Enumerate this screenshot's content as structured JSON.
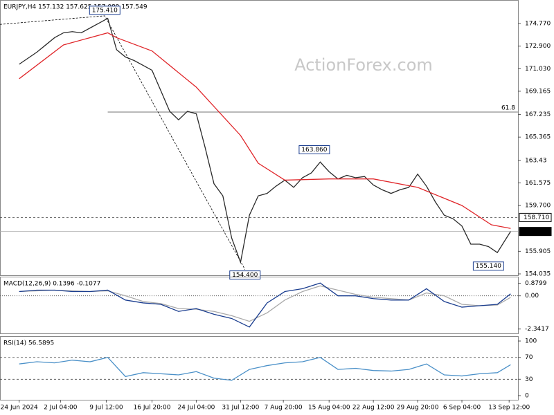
{
  "chart_data": [
    {
      "type": "line",
      "title": "EURJPY,H4  157.132 157.625 157.089 157.549",
      "watermark": "ActionForex.com",
      "xlim": [
        -13,
        338
      ],
      "ylim": [
        153.92,
        176.72
      ],
      "yticks": [
        {
          "value": 174.77,
          "label": "174.770"
        },
        {
          "value": 172.9,
          "label": "172.900"
        },
        {
          "value": 171.03,
          "label": "171.030"
        },
        169.165,
        167.235,
        165.365,
        163.43,
        161.575,
        {
          "value": 159.7,
          "label": "159.700"
        },
        155.905,
        154.035
      ],
      "x": [
        0,
        6,
        12,
        18,
        24,
        30,
        36,
        42,
        48,
        54,
        60,
        66,
        72,
        78,
        84,
        90,
        96,
        102,
        108,
        114,
        120,
        126,
        132,
        138,
        144,
        150,
        156,
        162,
        168,
        174,
        180,
        186,
        192,
        198,
        204,
        210,
        216,
        222,
        228,
        234,
        240,
        246,
        252,
        258,
        264,
        270,
        276,
        282,
        288,
        294,
        300,
        306,
        312,
        318,
        324,
        333
      ],
      "series": [
        {
          "color": "#2b2b2b",
          "values": [
            171.4,
            171.9,
            172.4,
            173.0,
            173.6,
            174.0,
            174.1,
            174.0,
            174.4,
            174.8,
            175.2,
            172.6,
            172.0,
            171.7,
            171.3,
            170.9,
            169.2,
            167.5,
            166.8,
            167.5,
            167.3,
            164.5,
            161.5,
            160.5,
            157.0,
            155.0,
            158.9,
            160.5,
            160.7,
            161.3,
            161.8,
            161.2,
            162.0,
            162.4,
            163.3,
            162.5,
            161.9,
            162.2,
            162.0,
            162.1,
            161.4,
            161.0,
            160.7,
            161.0,
            161.2,
            162.3,
            161.3,
            160.0,
            158.9,
            158.6,
            158.0,
            156.5,
            156.5,
            156.3,
            155.8,
            157.549
          ]
        },
        {
          "color": "#e0262a",
          "x": [
            0,
            30,
            60,
            66,
            90,
            120,
            150,
            162,
            180,
            210,
            240,
            270,
            300,
            320,
            333
          ],
          "values": [
            170.2,
            173.0,
            174.0,
            173.6,
            172.5,
            169.5,
            165.5,
            163.2,
            161.8,
            161.9,
            161.9,
            161.2,
            159.7,
            158.1,
            157.8
          ]
        }
      ],
      "zigzag": {
        "x": [
          -13,
          58,
          153
        ],
        "values": [
          174.7,
          175.41,
          154.4
        ]
      },
      "annotations": [
        {
          "label": "175.410",
          "x": 58,
          "value": 175.41,
          "position": "above"
        },
        {
          "label": "154.400",
          "x": 153,
          "value": 154.4,
          "position": "below"
        },
        {
          "label": "163.860",
          "x": 200,
          "value": 163.86,
          "position": "above"
        },
        {
          "label": "155.140",
          "x": 318,
          "value": 155.14,
          "position": "below"
        }
      ],
      "levels": [
        {
          "value": 167.44,
          "label": "61.8",
          "style": "solid",
          "label_at": "line",
          "x0": 60
        },
        {
          "value": 158.71,
          "label": "158.710",
          "style": "dashed",
          "label_at": "axis"
        },
        {
          "value": 157.549,
          "label": "157.549",
          "style": "solid",
          "label_at": "axis"
        }
      ]
    },
    {
      "type": "line",
      "title": "MACD(12,26,9) 0.1396 -0.1077",
      "xlim": [
        -13,
        338
      ],
      "ylim": [
        -2.65,
        1.35
      ],
      "yticks": [
        0.8799,
        {
          "value": 0,
          "label": "0.00"
        },
        -2.3417
      ],
      "x": [
        0,
        12,
        24,
        36,
        48,
        60,
        72,
        84,
        96,
        108,
        120,
        132,
        144,
        156,
        168,
        180,
        192,
        204,
        216,
        228,
        240,
        252,
        264,
        276,
        288,
        300,
        312,
        324,
        333
      ],
      "series": [
        {
          "color": "#aaaaaa",
          "values": [
            0.3,
            0.35,
            0.4,
            0.35,
            0.3,
            0.35,
            0.0,
            -0.4,
            -0.55,
            -0.9,
            -0.95,
            -1.1,
            -1.4,
            -1.8,
            -1.2,
            -0.3,
            0.3,
            0.7,
            0.4,
            0.1,
            -0.1,
            -0.2,
            -0.3,
            0.2,
            0.0,
            -0.6,
            -0.7,
            -0.65,
            -0.1077
          ]
        },
        {
          "color": "#1a3d8f",
          "values": [
            0.3,
            0.4,
            0.4,
            0.3,
            0.3,
            0.4,
            -0.3,
            -0.5,
            -0.6,
            -1.1,
            -0.9,
            -1.3,
            -1.6,
            -2.2,
            -0.5,
            0.3,
            0.5,
            0.9,
            0.0,
            0.0,
            -0.2,
            -0.3,
            -0.3,
            0.5,
            -0.4,
            -0.8,
            -0.7,
            -0.6,
            0.1396
          ]
        }
      ],
      "levels": [
        {
          "value": 0,
          "style": "dotted"
        }
      ]
    },
    {
      "type": "line",
      "title": "RSI(14) 56.5895",
      "xlim": [
        -13,
        338
      ],
      "ylim": [
        -7.6,
        108.9
      ],
      "yticks": [
        100,
        70,
        30,
        0
      ],
      "x": [
        0,
        12,
        24,
        36,
        48,
        60,
        72,
        84,
        96,
        108,
        120,
        132,
        144,
        156,
        168,
        180,
        192,
        204,
        216,
        228,
        240,
        252,
        264,
        276,
        288,
        300,
        312,
        324,
        333
      ],
      "series": [
        {
          "color": "#4a90c8",
          "values": [
            58,
            62,
            60,
            65,
            62,
            70,
            35,
            42,
            40,
            38,
            44,
            32,
            28,
            48,
            55,
            60,
            62,
            70,
            48,
            50,
            46,
            45,
            48,
            58,
            38,
            36,
            40,
            42,
            56.5895
          ]
        }
      ],
      "levels": [
        {
          "value": 70,
          "style": "dashed"
        },
        {
          "value": 30,
          "style": "dashed"
        }
      ],
      "xticks": [
        {
          "value": 0,
          "label": "24 Jun 2024"
        },
        {
          "value": 28,
          "label": "2 Jul 04:00"
        },
        {
          "value": 59,
          "label": "9 Jul 12:00"
        },
        {
          "value": 90,
          "label": "16 Jul 20:00"
        },
        {
          "value": 120,
          "label": "24 Jul 04:00"
        },
        {
          "value": 150,
          "label": "31 Jul 12:00"
        },
        {
          "value": 179,
          "label": "7 Aug 20:00"
        },
        {
          "value": 210,
          "label": "15 Aug 04:00"
        },
        {
          "value": 240,
          "label": "22 Aug 12:00"
        },
        {
          "value": 270,
          "label": "29 Aug 20:00"
        },
        {
          "value": 300,
          "label": "6 Sep 04:00"
        },
        {
          "value": 332,
          "label": "13 Sep 12:00"
        }
      ]
    }
  ]
}
